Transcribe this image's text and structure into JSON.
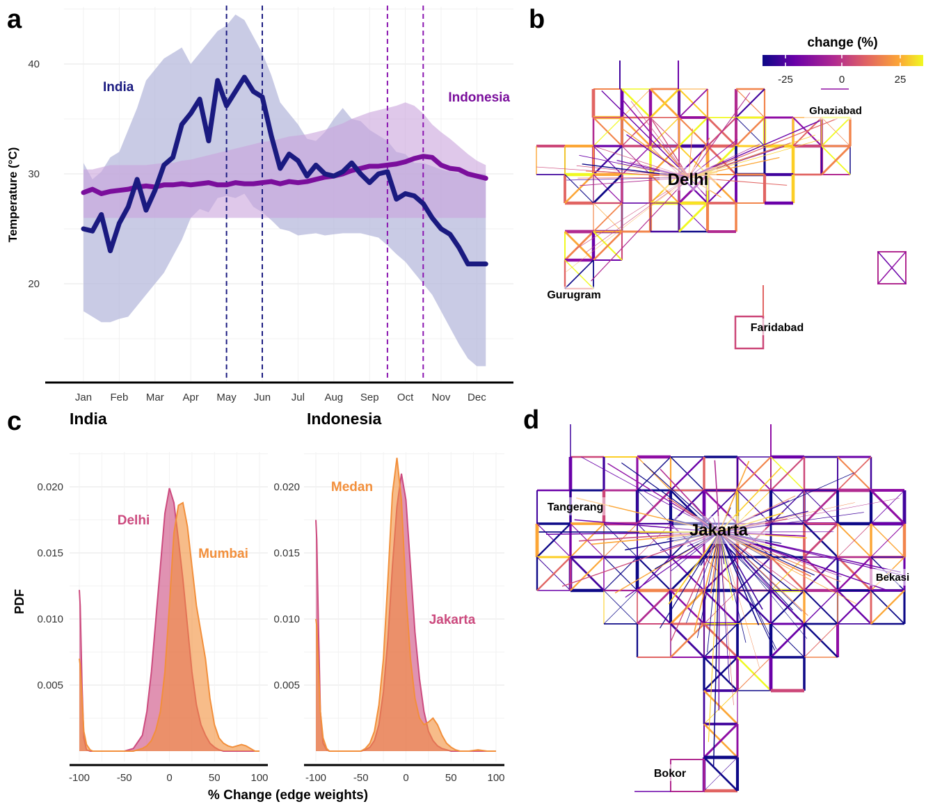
{
  "panels": {
    "a": "a",
    "b": "b",
    "c": "c",
    "d": "d"
  },
  "colors": {
    "india": "#1a1a80",
    "india_band": "#b7b9dc",
    "indonesia": "#7a0e9c",
    "indonesia_band": "#c9a3dc",
    "vline_india": "#1a1a80",
    "vline_indonesia": "#8a16b0",
    "delhi": "#cc4a7e",
    "mumbai": "#f28f3b",
    "medan": "#f28f3b",
    "jakarta": "#cc4a7e"
  },
  "chart_data": [
    {
      "panel": "a",
      "type": "line",
      "ylabel": "Temperature (°C)",
      "xlabel": "",
      "categories": [
        "Jan",
        "Feb",
        "Mar",
        "Apr",
        "May",
        "Jun",
        "Jul",
        "Aug",
        "Sep",
        "Oct",
        "Nov",
        "Dec"
      ],
      "ylim": [
        11,
        45
      ],
      "yticks": [
        20,
        30,
        40
      ],
      "grid": true,
      "series": [
        {
          "name": "India",
          "x": [
            0,
            0.25,
            0.5,
            0.75,
            1,
            1.25,
            1.5,
            1.75,
            2,
            2.25,
            2.5,
            2.75,
            3,
            3.25,
            3.5,
            3.75,
            4,
            4.25,
            4.5,
            4.75,
            5,
            5.25,
            5.5,
            5.75,
            6,
            6.25,
            6.5,
            6.75,
            7,
            7.25,
            7.5,
            7.75,
            8,
            8.25,
            8.5,
            8.75,
            9,
            9.25,
            9.5,
            9.75,
            10,
            10.25,
            10.5,
            10.75,
            11,
            11.25
          ],
          "values": [
            25,
            24.8,
            26.3,
            23,
            25.5,
            27,
            29.5,
            26.7,
            28.5,
            30.8,
            31.5,
            34.5,
            35.5,
            36.8,
            33,
            38.5,
            36.2,
            37.5,
            38.8,
            37.5,
            37,
            33.5,
            30.5,
            31.8,
            31.2,
            29.8,
            30.8,
            30,
            29.8,
            30.2,
            31,
            30,
            29.2,
            30,
            30.2,
            27.7,
            28.2,
            28,
            27.3,
            26,
            25,
            24.5,
            23.3,
            21.8,
            21.8,
            21.8
          ],
          "band_upper": [
            31,
            29.5,
            30.2,
            31.5,
            32,
            34,
            36,
            38.5,
            39.5,
            40.5,
            41,
            41.5,
            40,
            41,
            42,
            43,
            43.5,
            44.5,
            44,
            42.5,
            41,
            39,
            36.5,
            35.5,
            34.5,
            33.2,
            33,
            33.8,
            35,
            36,
            35,
            34.8,
            34,
            33.5,
            33,
            32,
            31.8,
            31,
            31,
            30.7,
            30.4,
            30.2,
            30.1,
            30,
            30,
            30
          ],
          "band_lower": [
            17.5,
            17,
            16.5,
            16.5,
            16.8,
            17,
            18,
            19,
            20,
            21,
            22.5,
            24,
            26,
            26.8,
            26.5,
            27.8,
            28,
            27.8,
            28.2,
            27,
            26.5,
            25.8,
            25,
            24.8,
            24.4,
            24.5,
            24.6,
            24.4,
            24.5,
            24.6,
            24.6,
            24.6,
            24.4,
            24.2,
            23.5,
            22.7,
            22,
            21,
            20,
            19,
            17.5,
            16,
            14.5,
            13.2,
            12.5,
            12.5
          ]
        },
        {
          "name": "Indonesia",
          "x": [
            0,
            0.25,
            0.5,
            0.75,
            1,
            1.25,
            1.5,
            1.75,
            2,
            2.25,
            2.5,
            2.75,
            3,
            3.25,
            3.5,
            3.75,
            4,
            4.25,
            4.5,
            4.75,
            5,
            5.25,
            5.5,
            5.75,
            6,
            6.25,
            6.5,
            6.75,
            7,
            7.25,
            7.5,
            7.75,
            8,
            8.25,
            8.5,
            8.75,
            9,
            9.25,
            9.5,
            9.75,
            10,
            10.25,
            10.5,
            10.75,
            11,
            11.25
          ],
          "values": [
            28.3,
            28.6,
            28.2,
            28.4,
            28.5,
            28.6,
            28.8,
            28.9,
            28.8,
            29,
            29,
            29.1,
            29,
            29.1,
            29.2,
            29,
            29,
            29.2,
            29.1,
            29.1,
            29.2,
            29.3,
            29.1,
            29.3,
            29.2,
            29.3,
            29.5,
            29.7,
            29.8,
            30,
            30.3,
            30.5,
            30.7,
            30.7,
            30.8,
            30.9,
            31.1,
            31.4,
            31.6,
            31.5,
            30.8,
            30.5,
            30.4,
            30,
            29.8,
            29.6
          ],
          "band_upper": [
            30.4,
            30.4,
            30.6,
            30.8,
            30.8,
            30.8,
            30.8,
            30.8,
            30.9,
            31,
            31,
            31.2,
            31.3,
            31.5,
            31.7,
            31.9,
            32.1,
            32.3,
            32.5,
            32.7,
            32.9,
            33,
            33.2,
            33.4,
            33.5,
            33.6,
            33.8,
            34,
            34.3,
            34.6,
            35,
            35.3,
            35.6,
            35.8,
            36,
            36.2,
            36.5,
            36.2,
            35.5,
            34.5,
            33.8,
            33.2,
            32.5,
            31.8,
            31.2,
            30.8
          ],
          "band_lower": [
            26,
            26,
            26,
            26,
            26,
            26,
            26,
            26,
            26,
            26,
            26,
            26,
            26,
            26,
            26,
            26,
            26,
            26,
            26,
            26,
            26,
            26,
            26,
            26,
            26,
            26,
            26,
            26,
            26,
            26,
            26,
            26,
            26,
            26,
            26,
            26,
            26,
            26,
            26,
            26,
            26,
            26,
            26,
            26,
            26,
            26
          ]
        }
      ],
      "vlines": [
        {
          "x": 4,
          "series": "India"
        },
        {
          "x": 5,
          "series": "India"
        },
        {
          "x": 8.5,
          "series": "Indonesia"
        },
        {
          "x": 9.5,
          "series": "Indonesia"
        }
      ],
      "annotations": [
        {
          "text": "India",
          "x": 1.1,
          "y": 37.5
        },
        {
          "text": "Indonesia",
          "x": 10.9,
          "y": 36.3
        }
      ]
    },
    {
      "panel": "b",
      "type": "heatmap",
      "legend_title": "change (%)",
      "legend_ticks": [
        "-25",
        "0",
        "25"
      ],
      "colorscale": [
        "#0d0887",
        "#6a00a8",
        "#b12a90",
        "#e16462",
        "#fca636",
        "#f0f921"
      ],
      "labels": [
        "Delhi",
        "Ghaziabad",
        "Gurugram",
        "Faridabad"
      ]
    },
    {
      "panel": "c",
      "type": "area",
      "xlabel": "% Change (edge weights)",
      "ylabel": "PDF",
      "xlim": [
        -105,
        105
      ],
      "ylim": [
        0,
        0.0225
      ],
      "xticks": [
        "-100",
        "-50",
        "0",
        "50",
        "100"
      ],
      "yticks": [
        "0.005",
        "0.010",
        "0.015",
        "0.020"
      ],
      "facets": [
        {
          "title": "India",
          "series": [
            {
              "name": "Delhi",
              "x": [
                -100,
                -99,
                -97,
                -95,
                -92,
                -88,
                -85,
                -80,
                -70,
                -60,
                -50,
                -40,
                -30,
                -25,
                -20,
                -15,
                -10,
                -5,
                0,
                5,
                10,
                15,
                20,
                25,
                30,
                35,
                40,
                45,
                50,
                55,
                60,
                65,
                70,
                75,
                80,
                85,
                90,
                95,
                100
              ],
              "values": [
                0.0122,
                0.011,
                0.005,
                0.001,
                0.0001,
                0,
                0,
                0,
                0,
                0,
                0,
                0.0002,
                0.0012,
                0.003,
                0.006,
                0.01,
                0.014,
                0.018,
                0.0199,
                0.0188,
                0.016,
                0.013,
                0.0095,
                0.006,
                0.0035,
                0.002,
                0.0012,
                0.0006,
                0.0003,
                0.0001,
                0,
                0,
                0,
                0,
                0,
                0,
                0,
                0,
                0
              ]
            },
            {
              "name": "Mumbai",
              "x": [
                -100,
                -99,
                -97,
                -95,
                -92,
                -88,
                -85,
                -80,
                -70,
                -60,
                -50,
                -40,
                -30,
                -25,
                -20,
                -15,
                -10,
                -5,
                0,
                5,
                10,
                15,
                20,
                25,
                30,
                35,
                40,
                45,
                50,
                55,
                60,
                65,
                70,
                75,
                80,
                85,
                90,
                95,
                100
              ],
              "values": [
                0.007,
                0.0065,
                0.004,
                0.0015,
                0.0005,
                0.0001,
                0,
                0,
                0,
                0,
                0,
                0,
                0.0002,
                0.0004,
                0.0008,
                0.0016,
                0.003,
                0.006,
                0.011,
                0.0165,
                0.0186,
                0.0188,
                0.017,
                0.014,
                0.011,
                0.009,
                0.007,
                0.004,
                0.002,
                0.001,
                0.0006,
                0.0004,
                0.0003,
                0.0004,
                0.0005,
                0.0004,
                0.0002,
                0,
                0
              ]
            }
          ],
          "annotations": [
            {
              "text": "Delhi",
              "x": -40,
              "y": 0.0175
            },
            {
              "text": "Mumbai",
              "x": 50,
              "y": 0.015
            }
          ]
        },
        {
          "title": "Indonesia",
          "series": [
            {
              "name": "Medan",
              "x": [
                -100,
                -99,
                -97,
                -95,
                -92,
                -88,
                -85,
                -80,
                -70,
                -60,
                -50,
                -45,
                -40,
                -35,
                -30,
                -25,
                -20,
                -15,
                -10,
                -5,
                0,
                5,
                10,
                15,
                20,
                25,
                30,
                35,
                40,
                45,
                50,
                55,
                60,
                70,
                80,
                90,
                100
              ],
              "values": [
                0.01,
                0.0095,
                0.006,
                0.003,
                0.001,
                0.0002,
                0,
                0,
                0,
                0,
                0,
                0.0002,
                0.0006,
                0.0015,
                0.0035,
                0.007,
                0.013,
                0.0195,
                0.0222,
                0.019,
                0.012,
                0.007,
                0.004,
                0.0025,
                0.002,
                0.0022,
                0.0025,
                0.002,
                0.0012,
                0.0006,
                0.0003,
                0.0001,
                0,
                0,
                0.0001,
                0,
                0
              ]
            },
            {
              "name": "Jakarta",
              "x": [
                -100,
                -99,
                -97,
                -95,
                -92,
                -88,
                -85,
                -80,
                -70,
                -60,
                -50,
                -45,
                -40,
                -35,
                -30,
                -25,
                -20,
                -15,
                -10,
                -5,
                0,
                5,
                10,
                15,
                20,
                25,
                30,
                35,
                40,
                45,
                50,
                55,
                60,
                70,
                80,
                90,
                100
              ],
              "values": [
                0.0175,
                0.016,
                0.009,
                0.003,
                0.0006,
                0.0001,
                0,
                0,
                0,
                0,
                0,
                0.0001,
                0.0003,
                0.0008,
                0.002,
                0.0045,
                0.0085,
                0.014,
                0.0185,
                0.021,
                0.019,
                0.014,
                0.009,
                0.0055,
                0.003,
                0.0015,
                0.0008,
                0.0004,
                0.0002,
                0.0001,
                0,
                0,
                0,
                0,
                0,
                0,
                0
              ]
            }
          ],
          "annotations": [
            {
              "text": "Medan",
              "x": -60,
              "y": 0.02
            },
            {
              "text": "Jakarta",
              "x": 50,
              "y": 0.01
            }
          ]
        }
      ]
    },
    {
      "panel": "d",
      "type": "heatmap",
      "labels": [
        "Jakarta",
        "Tangerang",
        "Bekasi",
        "Bokor"
      ]
    }
  ]
}
